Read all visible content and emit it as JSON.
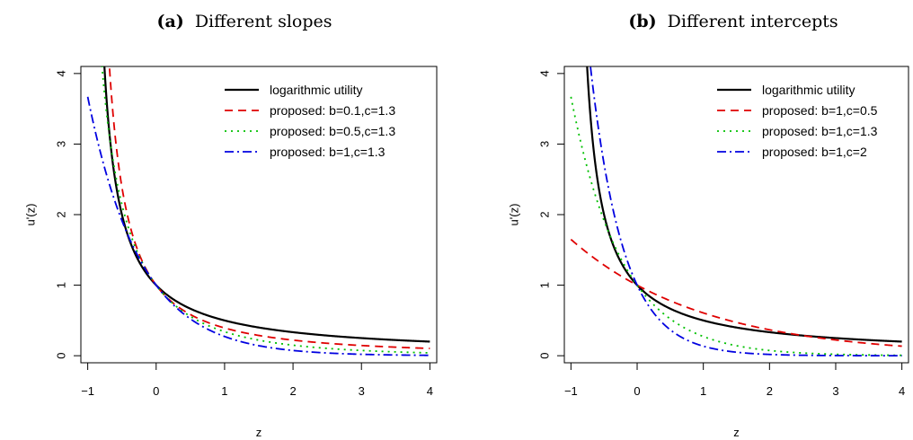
{
  "chart_data": [
    {
      "type": "line",
      "tag": "(a)",
      "title": "Different slopes",
      "xlabel": "z",
      "ylabel": "u'(z)",
      "xlim": [
        -1.1,
        4.1
      ],
      "ylim": [
        -0.1,
        4.1
      ],
      "xticks": [
        -1,
        0,
        1,
        2,
        3,
        4
      ],
      "xtick_labels": [
        "−1",
        "0",
        "1",
        "2",
        "3",
        "4"
      ],
      "yticks": [
        0,
        1,
        2,
        3,
        4
      ],
      "ytick_labels": [
        "0",
        "1",
        "2",
        "3",
        "4"
      ],
      "grid": false,
      "legend_position": "top-right",
      "series": [
        {
          "name": "logarithmic utility",
          "color": "#000000",
          "style": "solid",
          "b": null,
          "c": null
        },
        {
          "name": "proposed: b=0.1,c=1.3",
          "color": "#df0000",
          "style": "dashed",
          "b": 0.1,
          "c": 1.3
        },
        {
          "name": "proposed: b=0.5,c=1.3",
          "color": "#00c000",
          "style": "dotted",
          "b": 0.5,
          "c": 1.3
        },
        {
          "name": "proposed: b=1,c=1.3",
          "color": "#0000e0",
          "style": "dotdash",
          "b": 1,
          "c": 1.3
        }
      ]
    },
    {
      "type": "line",
      "tag": "(b)",
      "title": "Different intercepts",
      "xlabel": "z",
      "ylabel": "u'(z)",
      "xlim": [
        -1.1,
        4.1
      ],
      "ylim": [
        -0.1,
        4.1
      ],
      "xticks": [
        -1,
        0,
        1,
        2,
        3,
        4
      ],
      "xtick_labels": [
        "−1",
        "0",
        "1",
        "2",
        "3",
        "4"
      ],
      "yticks": [
        0,
        1,
        2,
        3,
        4
      ],
      "ytick_labels": [
        "0",
        "1",
        "2",
        "3",
        "4"
      ],
      "grid": false,
      "legend_position": "top-right",
      "series": [
        {
          "name": "logarithmic utility",
          "color": "#000000",
          "style": "solid",
          "b": null,
          "c": null
        },
        {
          "name": "proposed: b=1,c=0.5",
          "color": "#df0000",
          "style": "dashed",
          "b": 1,
          "c": 0.5
        },
        {
          "name": "proposed: b=1,c=1.3",
          "color": "#00c000",
          "style": "dotted",
          "b": 1,
          "c": 1.3
        },
        {
          "name": "proposed: b=1,c=2",
          "color": "#0000e0",
          "style": "dotdash",
          "b": 1,
          "c": 2
        }
      ]
    }
  ]
}
